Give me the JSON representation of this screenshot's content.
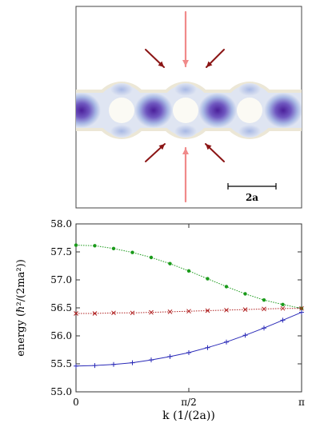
{
  "top_panel": {
    "scale_bar_label": "2a",
    "colors": {
      "channel_outer": "#ece7d6",
      "channel_inner": "#dfe5f2",
      "density_mid": "#a8b8e4",
      "density_peak": "#4b1f9a",
      "hole": "#fbfaf4",
      "arrow_light": "#f08a8a",
      "arrow_dark": "#8b1515"
    }
  },
  "chart_data": {
    "type": "line",
    "xlabel": "k (1/(2a))",
    "ylabel": "energy (ℏ²/(2ma²))",
    "xlim": [
      0,
      3.14159
    ],
    "ylim": [
      55.0,
      58.0
    ],
    "x_ticks": [
      {
        "value": 0,
        "label": "0"
      },
      {
        "value": 1.5708,
        "label": "π/2"
      },
      {
        "value": 3.14159,
        "label": "π"
      }
    ],
    "y_ticks": [
      {
        "value": 55.0,
        "label": "55.0"
      },
      {
        "value": 55.5,
        "label": "55.5"
      },
      {
        "value": 56.0,
        "label": "56.0"
      },
      {
        "value": 56.5,
        "label": "56.5"
      },
      {
        "value": 57.0,
        "label": "57.0"
      },
      {
        "value": 57.5,
        "label": "57.5"
      },
      {
        "value": 58.0,
        "label": "58.0"
      }
    ],
    "grid": false,
    "legend": "none",
    "x": [
      0,
      0.2618,
      0.5236,
      0.7854,
      1.0472,
      1.309,
      1.5708,
      1.8326,
      2.0944,
      2.3562,
      2.618,
      2.8798,
      3.1416
    ],
    "series": [
      {
        "color": "#1a9a1a",
        "marker": "dot",
        "values": [
          57.62,
          57.61,
          57.56,
          57.49,
          57.4,
          57.29,
          57.16,
          57.02,
          56.88,
          56.75,
          56.64,
          56.56,
          56.49
        ]
      },
      {
        "color": "#b02020",
        "marker": "x",
        "values": [
          56.4,
          56.4,
          56.41,
          56.41,
          56.42,
          56.43,
          56.44,
          56.45,
          56.46,
          56.47,
          56.48,
          56.49,
          56.49
        ]
      },
      {
        "color": "#2a2ab8",
        "marker": "plus",
        "values": [
          55.46,
          55.47,
          55.49,
          55.52,
          55.57,
          55.63,
          55.7,
          55.79,
          55.89,
          56.01,
          56.14,
          56.28,
          56.42
        ]
      }
    ]
  }
}
